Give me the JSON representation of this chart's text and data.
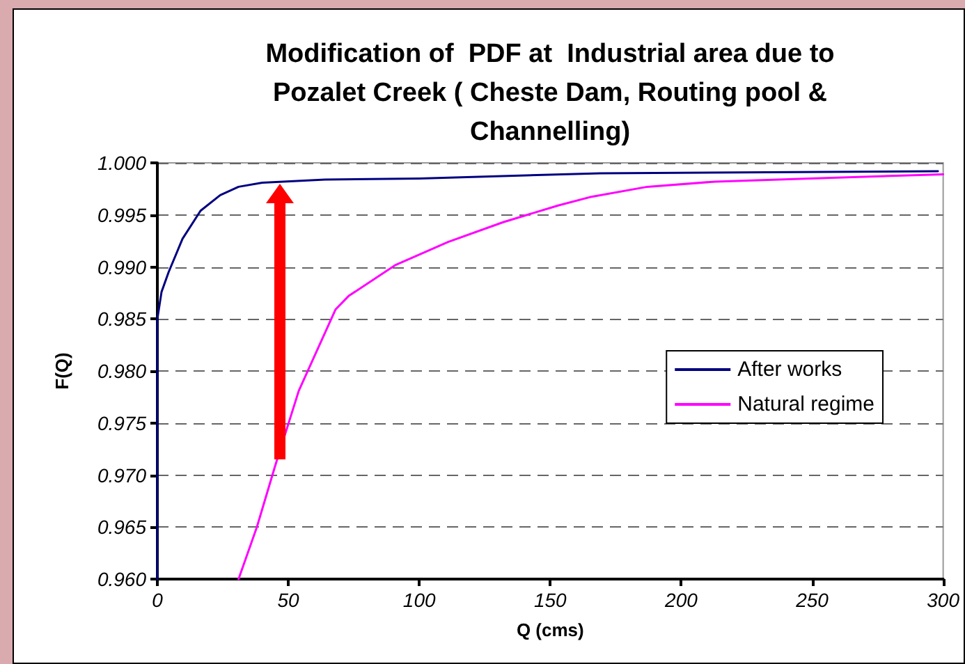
{
  "chart_data": {
    "type": "line",
    "title": "Modification of  PDF at  Industrial area due to\nPozalet Creek ( Cheste Dam, Routing pool &\nChannelling)",
    "xlabel": "Q (cms)",
    "ylabel": "F(Q)",
    "xlim": [
      0,
      300
    ],
    "xticks": [
      0,
      50,
      100,
      150,
      200,
      250,
      300
    ],
    "ylim": [
      0.96,
      1.0
    ],
    "yticks": [
      {
        "value": 0.96,
        "label": "0.960"
      },
      {
        "value": 0.965,
        "label": "0.965"
      },
      {
        "value": 0.97,
        "label": "0.970"
      },
      {
        "value": 0.975,
        "label": "0.975"
      },
      {
        "value": 0.98,
        "label": "0.980"
      },
      {
        "value": 0.985,
        "label": "0.985"
      },
      {
        "value": 0.99,
        "label": "0.990"
      },
      {
        "value": 0.995,
        "label": "0.995"
      },
      {
        "value": 1.0,
        "label": "1.000"
      }
    ],
    "grid": "y",
    "legend": "right",
    "marker": "none",
    "line_style": "solid",
    "series": [
      {
        "name": "After works",
        "color": "#000080",
        "x": [
          0,
          0,
          1.6,
          4.3,
          9.6,
          16.5,
          24,
          31,
          40,
          64,
          100,
          169,
          298
        ],
        "values": [
          0.96,
          0.985,
          0.9876,
          0.9895,
          0.9927,
          0.9954,
          0.9969,
          0.9977,
          0.9981,
          0.9984,
          0.9985,
          0.999,
          0.9992
        ]
      },
      {
        "name": "Natural regime",
        "color": "#ff00ff",
        "x": [
          31,
          38,
          45,
          54,
          68,
          73,
          91,
          111,
          132,
          153,
          165,
          187,
          213,
          249,
          300
        ],
        "values": [
          0.96,
          0.965,
          0.9709,
          0.9781,
          0.9859,
          0.9872,
          0.9902,
          0.9924,
          0.9943,
          0.9959,
          0.9967,
          0.9977,
          0.9982,
          0.9985,
          0.9989
        ]
      }
    ]
  }
}
